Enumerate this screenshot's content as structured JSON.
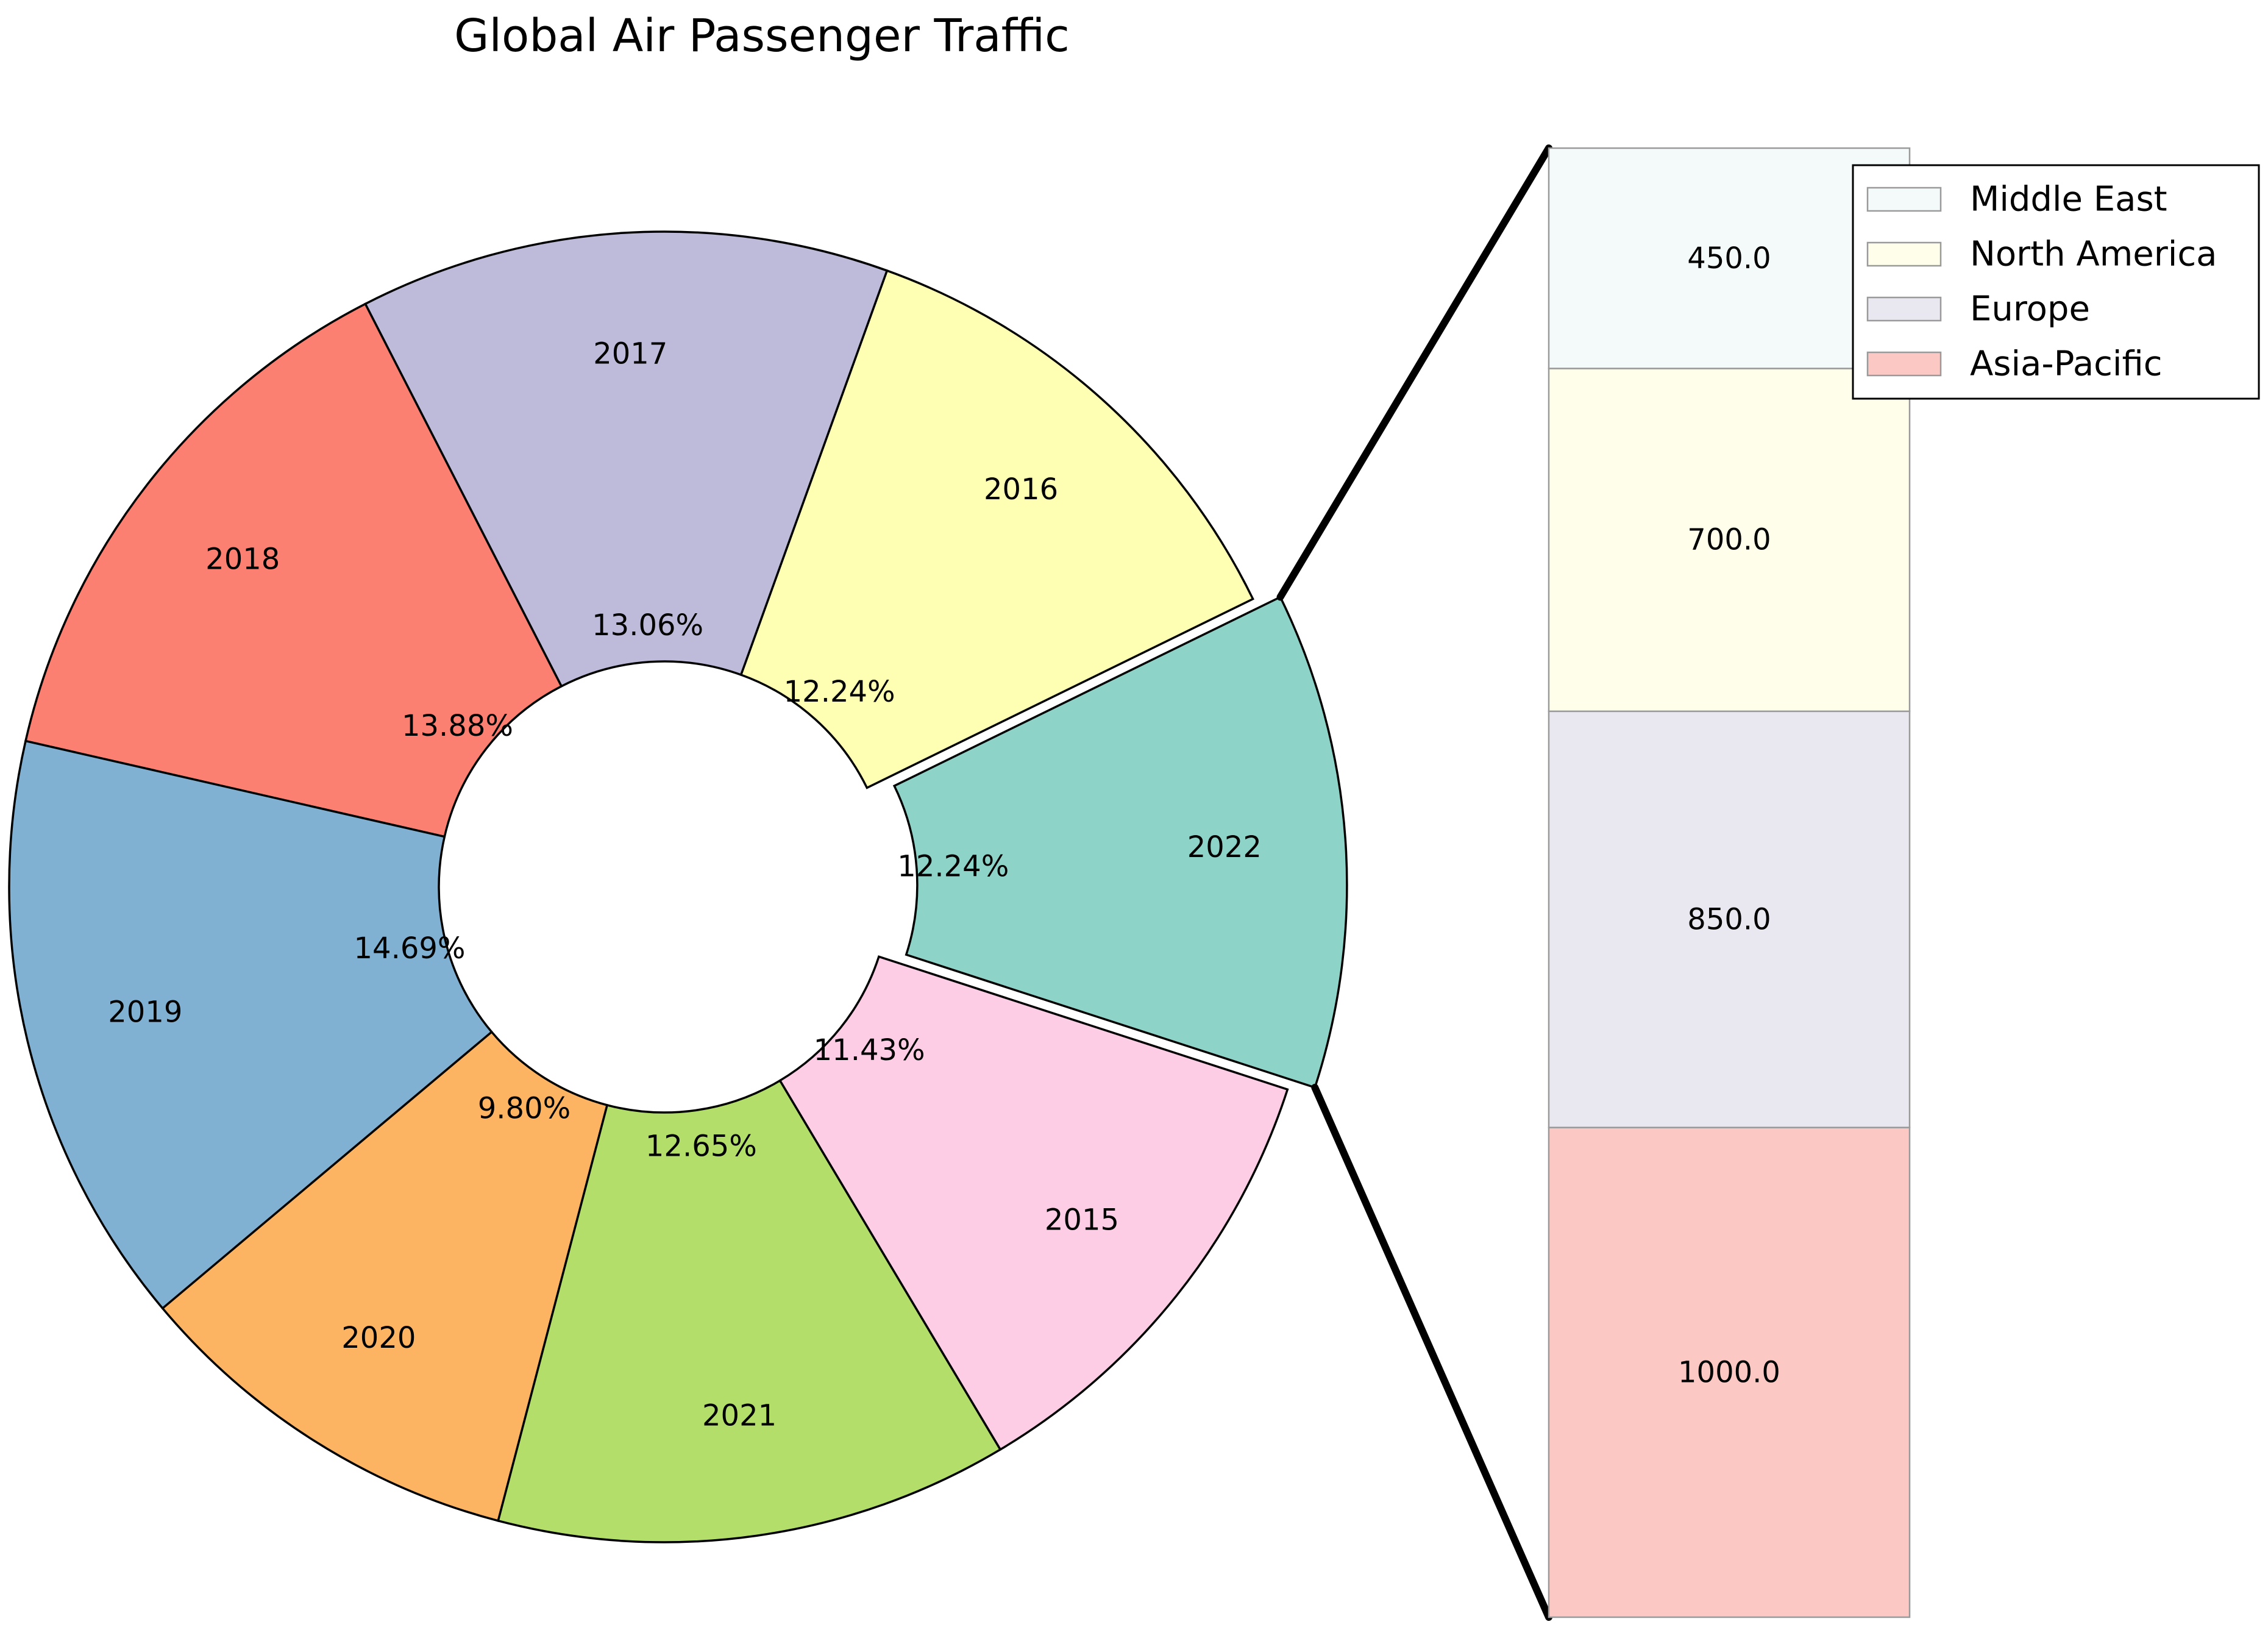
{
  "chart_data": [
    {
      "type": "pie",
      "variant": "donut",
      "title": "Global Air Passenger Traffic",
      "start_angle_deg": -18,
      "direction": "counterclockwise",
      "exploded_slice": "2022",
      "slices": [
        {
          "label": "2022",
          "percent_label": "12.24%",
          "value": 12.24,
          "color": "#8dd3c7"
        },
        {
          "label": "2016",
          "percent_label": "12.24%",
          "value": 12.24,
          "color": "#ffffb3"
        },
        {
          "label": "2017",
          "percent_label": "13.06%",
          "value": 13.06,
          "color": "#bebada"
        },
        {
          "label": "2018",
          "percent_label": "13.88%",
          "value": 13.88,
          "color": "#fb8072"
        },
        {
          "label": "2019",
          "percent_label": "14.69%",
          "value": 14.69,
          "color": "#80b1d3"
        },
        {
          "label": "2020",
          "percent_label": "9.80%",
          "value": 9.8,
          "color": "#fdb462"
        },
        {
          "label": "2021",
          "percent_label": "12.65%",
          "value": 12.65,
          "color": "#b3de69"
        },
        {
          "label": "2015",
          "percent_label": "11.43%",
          "value": 11.43,
          "color": "#fccde5"
        }
      ]
    },
    {
      "type": "bar",
      "variant": "stacked",
      "breakdown_of": "2022",
      "series": [
        {
          "name": "Asia-Pacific",
          "value": 1000,
          "label": "1000.0",
          "color": "#fcc8c3"
        },
        {
          "name": "Europe",
          "value": 850,
          "label": "850.0",
          "color": "#e9e7f0"
        },
        {
          "name": "North America",
          "value": 700,
          "label": "700.0",
          "color": "#fefeea"
        },
        {
          "name": "Middle East",
          "value": 450,
          "label": "450.0",
          "color": "#f4f9f9"
        }
      ],
      "legend": {
        "position": "top-right",
        "entries": [
          "Middle East",
          "North America",
          "Europe",
          "Asia-Pacific"
        ]
      }
    }
  ]
}
